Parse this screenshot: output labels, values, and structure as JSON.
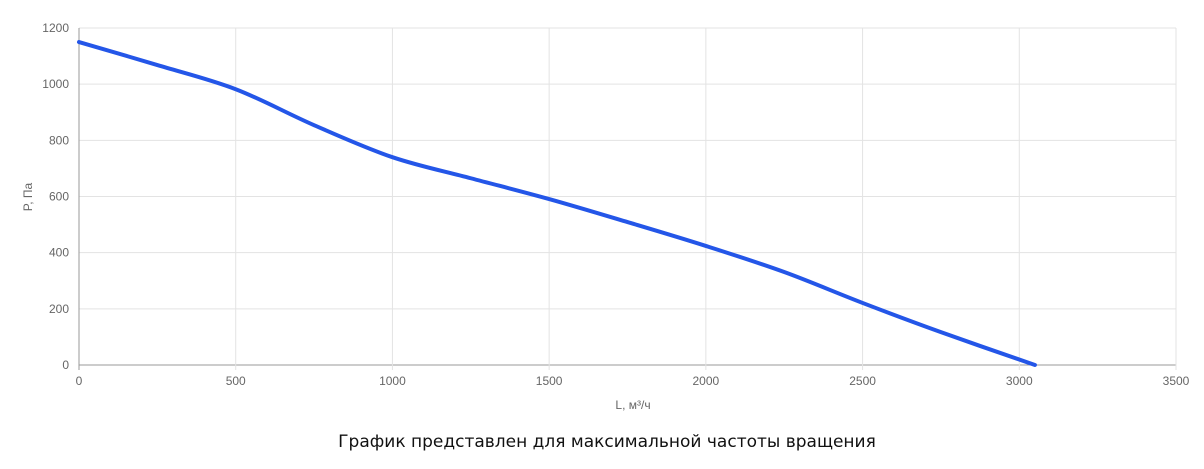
{
  "chart_data": {
    "type": "line",
    "x_label": "L, м³/ч",
    "y_label": "P, Па",
    "caption": "График представлен для максимальной частоты вращения",
    "x": [
      0,
      250,
      500,
      750,
      1000,
      1250,
      1500,
      1750,
      2000,
      2250,
      2500,
      2750,
      3050
    ],
    "series": [
      {
        "color": "#2456e8",
        "values": [
          1150,
          1068,
          982,
          854,
          740,
          665,
          591,
          509,
          424,
          331,
          221,
          117,
          0
        ]
      }
    ],
    "xlim": [
      0,
      3500
    ],
    "xticks": [
      0,
      500,
      1000,
      1500,
      2000,
      2500,
      3000,
      3500
    ],
    "ylim": [
      0,
      1200
    ],
    "yticks": [
      0,
      200,
      400,
      600,
      800,
      1000,
      1200
    ],
    "grid": true
  }
}
